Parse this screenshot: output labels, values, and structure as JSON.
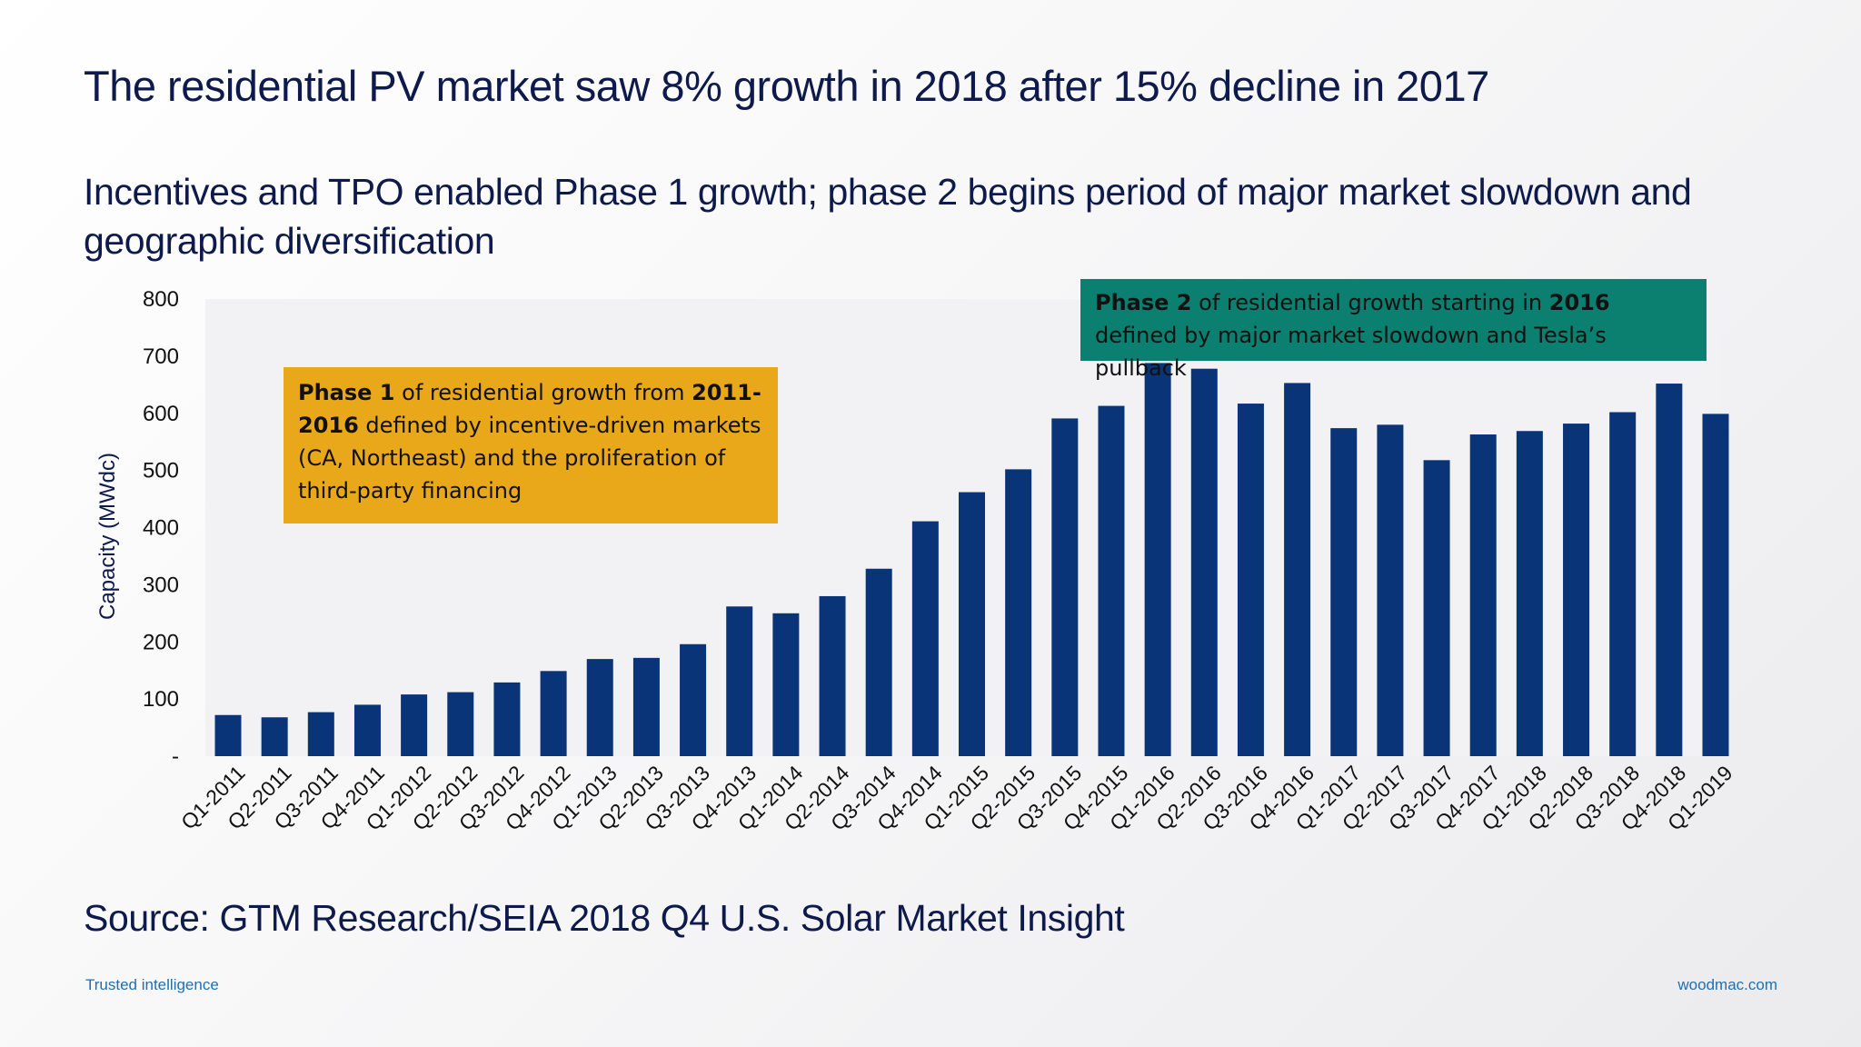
{
  "header": {
    "title": "The residential PV market saw 8% growth in 2018 after 15% decline in 2017",
    "subtitle": "Incentives and TPO enabled Phase 1 growth; phase 2 begins period of major market slowdown and geographic diversification"
  },
  "callouts": {
    "phase1": {
      "bold1": "Phase 1",
      "text1": " of residential growth from ",
      "bold2": "2011-2016",
      "text2": " defined by incentive-driven markets (CA, Northeast) and the proliferation of third-party financing",
      "color": "#e8a81a"
    },
    "phase2": {
      "bold1": "Phase 2",
      "text1": " of residential growth starting in ",
      "bold2": "2016",
      "text2": " defined by major market slowdown and Tesla’s pullback",
      "color": "#0b7f70"
    }
  },
  "source": "Source: GTM Research/SEIA 2018 Q4 U.S. Solar Market Insight",
  "footer": {
    "left": "Trusted intelligence",
    "right": "woodmac.com"
  },
  "colors": {
    "bar": "#0a3478",
    "plot_background": "#f2f2f4",
    "title_text": "#0d1a4b",
    "footer_text": "#1f6fb2"
  },
  "chart_data": {
    "type": "bar",
    "title": "",
    "xlabel": "",
    "ylabel": "Capacity (MWdc)",
    "ylim": [
      0,
      800
    ],
    "yticks": [
      0,
      100,
      200,
      300,
      400,
      500,
      600,
      700,
      800
    ],
    "ytick_labels": [
      "-",
      "100",
      "200",
      "300",
      "400",
      "500",
      "600",
      "700",
      "800"
    ],
    "grid": false,
    "legend": "none",
    "categories": [
      "Q1-2011",
      "Q2-2011",
      "Q3-2011",
      "Q4-2011",
      "Q1-2012",
      "Q2-2012",
      "Q3-2012",
      "Q4-2012",
      "Q1-2013",
      "Q2-2013",
      "Q3-2013",
      "Q4-2013",
      "Q1-2014",
      "Q2-2014",
      "Q3-2014",
      "Q4-2014",
      "Q1-2015",
      "Q2-2015",
      "Q3-2015",
      "Q4-2015",
      "Q1-2016",
      "Q2-2016",
      "Q3-2016",
      "Q4-2016",
      "Q1-2017",
      "Q2-2017",
      "Q3-2017",
      "Q4-2017",
      "Q1-2018",
      "Q2-2018",
      "Q3-2018",
      "Q4-2018",
      "Q1-2019"
    ],
    "values": [
      72,
      68,
      77,
      90,
      108,
      112,
      129,
      149,
      170,
      172,
      196,
      262,
      250,
      280,
      328,
      411,
      462,
      502,
      591,
      613,
      688,
      678,
      617,
      653,
      574,
      580,
      518,
      563,
      569,
      582,
      602,
      652,
      599
    ]
  }
}
